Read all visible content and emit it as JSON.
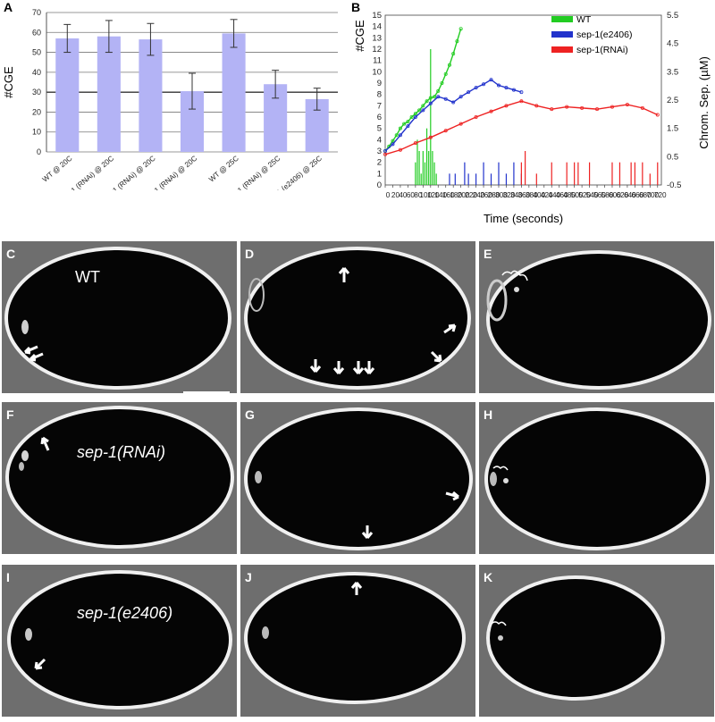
{
  "panels": {
    "A": "A",
    "B": "B",
    "C": "C",
    "D": "D",
    "E": "E",
    "F": "F",
    "G": "G",
    "H": "H",
    "I": "I",
    "J": "J",
    "K": "K"
  },
  "micro_labels": {
    "wt": "WT",
    "rnai": "sep-1(RNAi)",
    "e2406": "sep-1(e2406)"
  },
  "chart_data": [
    {
      "type": "bar",
      "panel": "A",
      "ylabel": "#CGE",
      "xlabel": "",
      "ylim": [
        0,
        70
      ],
      "yticks": [
        0,
        10,
        20,
        30,
        40,
        50,
        60,
        70
      ],
      "grid": true,
      "categories": [
        "WT @ 20C",
        "cks-1 (RNAi) @ 20C",
        "cks-1 (RNAi) @ 20C",
        "sep-1 (RNAi) @ 20C",
        "WT @ 25C",
        "sep-1 (RNAi) @ 25C",
        "sep-1 (e2406) @ 25C"
      ],
      "values": [
        57,
        58,
        56.5,
        30.5,
        59.5,
        34,
        26.5
      ],
      "errors": [
        7,
        8,
        8,
        9,
        7,
        7,
        5.5
      ],
      "bar_color": "#b3b3f5"
    },
    {
      "type": "line",
      "panel": "B",
      "xlabel": "Time (seconds)",
      "ylabel": "#CGE",
      "y2label": "Chrom. Sep. (µM)",
      "xlim": [
        0,
        730
      ],
      "ylim": [
        0,
        15
      ],
      "y2lim": [
        -0.5,
        5.5
      ],
      "xticks": [
        0,
        20,
        40,
        60,
        80,
        100,
        120,
        140,
        160,
        180,
        200,
        220,
        240,
        260,
        280,
        300,
        320,
        340,
        360,
        380,
        400,
        420,
        440,
        460,
        480,
        500,
        520,
        540,
        560,
        580,
        600,
        620,
        640,
        660,
        680,
        700,
        720
      ],
      "yticks": [
        0,
        1,
        2,
        3,
        4,
        5,
        6,
        7,
        8,
        9,
        10,
        11,
        12,
        13,
        14,
        15
      ],
      "y2ticks": [
        -0.5,
        0.5,
        1.5,
        2.5,
        3.5,
        4.5,
        5.5
      ],
      "legend_position": "top-right",
      "series": [
        {
          "name": "WT",
          "color": "#22cc22",
          "x": [
            0,
            10,
            20,
            30,
            40,
            50,
            60,
            70,
            80,
            90,
            100,
            110,
            120,
            130,
            140,
            150,
            160,
            170,
            180,
            190,
            200
          ],
          "y": [
            3,
            3.4,
            3.9,
            4.4,
            5,
            5.4,
            5.6,
            6,
            6.3,
            6.6,
            7,
            7.4,
            7.7,
            7.8,
            8.3,
            9,
            9.8,
            10.6,
            11.6,
            12.7,
            13.8
          ],
          "bars_x": [
            80,
            85,
            90,
            95,
            100,
            105,
            110,
            115,
            120,
            125,
            130,
            135
          ],
          "bars_y": [
            2,
            4,
            3,
            1,
            3,
            2,
            5,
            3,
            12,
            3,
            2,
            1
          ]
        },
        {
          "name": "sep-1(e2406)",
          "color": "#2233cc",
          "x": [
            0,
            20,
            40,
            60,
            80,
            100,
            120,
            140,
            160,
            180,
            200,
            220,
            240,
            260,
            280,
            300,
            320,
            340,
            360
          ],
          "y": [
            3,
            3.6,
            4.4,
            5.2,
            6,
            6.6,
            7.2,
            7.8,
            7.6,
            7.3,
            7.8,
            8.2,
            8.6,
            8.9,
            9.3,
            8.8,
            8.6,
            8.4,
            8.2
          ],
          "bars_x": [
            170,
            185,
            210,
            220,
            240,
            260,
            280,
            300,
            320,
            340,
            360
          ],
          "bars_y": [
            1,
            1,
            2,
            1,
            1,
            2,
            1,
            2,
            1,
            2,
            1
          ]
        },
        {
          "name": "sep-1(RNAi)",
          "color": "#ee2222",
          "x": [
            0,
            40,
            80,
            120,
            160,
            200,
            240,
            280,
            320,
            360,
            400,
            440,
            480,
            520,
            560,
            600,
            640,
            680,
            720
          ],
          "y": [
            2.7,
            3.1,
            3.7,
            4.2,
            4.8,
            5.4,
            6,
            6.5,
            7,
            7.4,
            7,
            6.7,
            6.9,
            6.8,
            6.7,
            6.9,
            7.1,
            6.8,
            6.2
          ],
          "bars_x": [
            360,
            370,
            400,
            440,
            480,
            500,
            510,
            540,
            600,
            620,
            650,
            660,
            680,
            700,
            720
          ],
          "bars_y": [
            2,
            3,
            1,
            2,
            2,
            2,
            2,
            2,
            2,
            2,
            2,
            2,
            2,
            1,
            2
          ]
        }
      ]
    }
  ]
}
